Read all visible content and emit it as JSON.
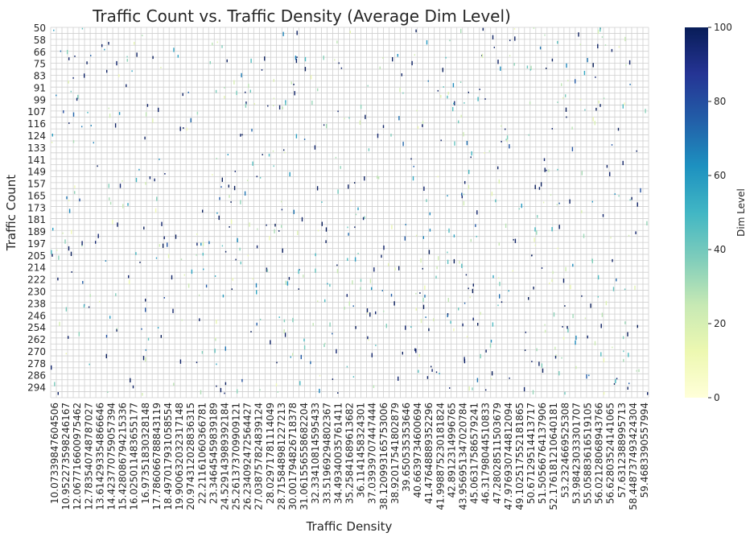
{
  "chart_data": {
    "type": "heatmap",
    "title": "Traffic Count vs. Traffic Density (Average Dim Level)",
    "xlabel": "Traffic Density",
    "ylabel": "Traffic Count",
    "colorbar": {
      "label": "Dim Level",
      "range": [
        0,
        100
      ],
      "ticks": [
        0,
        20,
        40,
        60,
        80,
        100
      ],
      "colors": [
        "#ffffd9",
        "#edf8b1",
        "#c7e9b4",
        "#7fcdbb",
        "#41b6c4",
        "#1d91c0",
        "#225ea8",
        "#253494",
        "#081d58"
      ]
    },
    "y_ticks": [
      50,
      58,
      66,
      75,
      83,
      91,
      99,
      107,
      116,
      124,
      133,
      141,
      149,
      157,
      165,
      173,
      181,
      189,
      197,
      205,
      214,
      222,
      230,
      238,
      246,
      254,
      262,
      270,
      278,
      286,
      294
    ],
    "x_ticks": [
      "10.0733984760450​6",
      "10.952273598246167",
      "12.067716600975462",
      "12.783540748787027",
      "13.614293354866646",
      "14.423770759057394",
      "15.428086794215336",
      "16.025011483655177",
      "16.973518303281 48",
      "17.786066788843119",
      "18.497017931058554",
      "19.900632032317148",
      "20.974312028836315",
      "22.21161060366781",
      "23.34645459839189",
      "24.529143989392184",
      "25.261373709909121",
      "26.234092472564427",
      "27.038757824839124",
      "28.02971781114049",
      "28.715848981227213",
      "30.00179482671837 8",
      "31.061556558682204",
      "32.33410814595433",
      "33.519692948023 67",
      "34.493400357614 11",
      "35.25841689613682",
      "36.114145832430 1",
      "37.039397074474 44",
      "38.120993165753006",
      "38.920175418028 79",
      "39.65053535 3646",
      "40.663973460069 4",
      "41.476488893522 96",
      "41.998875230181 824",
      "42.891231499676 5",
      "43.956951347020 784",
      "45.063175865792 41",
      "46.317980445108 33",
      "47.280285115036 79",
      "47.976930744812 094",
      "49.102517552181 865",
      "50.671295144137 17",
      "51.505667641379 06",
      "52.176181210640 181",
      "53.232466952530 8",
      "53.984230333017 07",
      "55.058836165191 05",
      "56.021280689437 66",
      "56.628035241410 65",
      "57.631238899571 3",
      "58.448737493424 304",
      "59.468339055799 4"
    ],
    "x_range": [
      10.07,
      60.0
    ],
    "y_range": [
      50,
      300
    ]
  }
}
